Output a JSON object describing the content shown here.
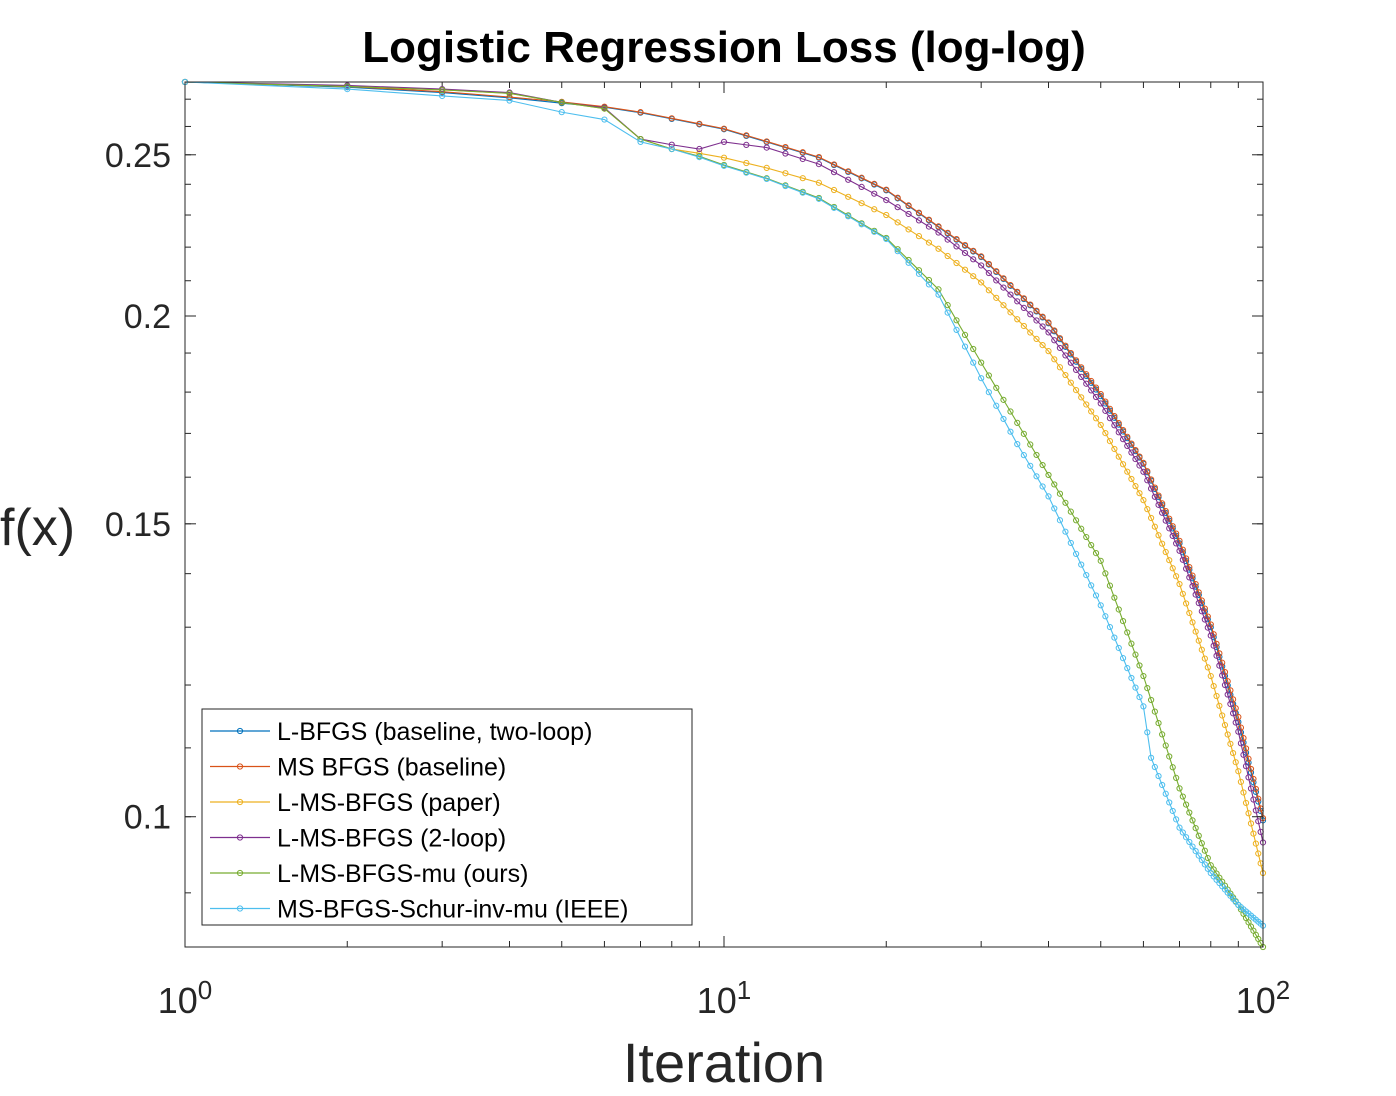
{
  "chart_data": {
    "type": "line",
    "scale": "log-log",
    "title": "Logistic Regression Loss (log-log)",
    "xlabel": "Iteration",
    "ylabel": "f(x)",
    "xlim": [
      1,
      100
    ],
    "ylim": [
      0.0835,
      0.2765
    ],
    "x_ticks": [
      {
        "value": 1,
        "base": "10",
        "exp": "0"
      },
      {
        "value": 10,
        "base": "10",
        "exp": "1"
      },
      {
        "value": 100,
        "base": "10",
        "exp": "2"
      }
    ],
    "y_ticks": [
      {
        "value": 0.1,
        "label": "0.1"
      },
      {
        "value": 0.15,
        "label": "0.15"
      },
      {
        "value": 0.2,
        "label": "0.2"
      },
      {
        "value": 0.25,
        "label": "0.25"
      }
    ],
    "legend_position": "bottom-left",
    "series": [
      {
        "name": "L-BFGS (baseline, two-loop)",
        "color": "#0072BD",
        "points": [
          [
            1,
            0.2765
          ],
          [
            2,
            0.2745
          ],
          [
            3,
            0.2725
          ],
          [
            4,
            0.2705
          ],
          [
            5,
            0.2685
          ],
          [
            6,
            0.267
          ],
          [
            7,
            0.265
          ],
          [
            10,
            0.259
          ],
          [
            15,
            0.249
          ],
          [
            20,
            0.238
          ],
          [
            30,
            0.217
          ],
          [
            40,
            0.198
          ],
          [
            50,
            0.179
          ],
          [
            60,
            0.163
          ],
          [
            70,
            0.146
          ],
          [
            80,
            0.13
          ],
          [
            90,
            0.114
          ],
          [
            100,
            0.0995
          ]
        ]
      },
      {
        "name": "MS BFGS (baseline)",
        "color": "#D95319",
        "points": [
          [
            1,
            0.2765
          ],
          [
            2,
            0.2748
          ],
          [
            3,
            0.2728
          ],
          [
            4,
            0.2708
          ],
          [
            5,
            0.269
          ],
          [
            6,
            0.2672
          ],
          [
            7,
            0.2652
          ],
          [
            10,
            0.2592
          ],
          [
            15,
            0.2492
          ],
          [
            20,
            0.2382
          ],
          [
            30,
            0.2172
          ],
          [
            40,
            0.1982
          ],
          [
            50,
            0.1795
          ],
          [
            60,
            0.1632
          ],
          [
            70,
            0.1465
          ],
          [
            80,
            0.1305
          ],
          [
            90,
            0.1148
          ],
          [
            100,
            0.0998
          ]
        ]
      },
      {
        "name": "L-MS-BFGS (paper)",
        "color": "#EDB120",
        "points": [
          [
            1,
            0.2765
          ],
          [
            2,
            0.2748
          ],
          [
            3,
            0.2735
          ],
          [
            4,
            0.2722
          ],
          [
            5,
            0.2688
          ],
          [
            6,
            0.2665
          ],
          [
            7,
            0.2555
          ],
          [
            8,
            0.252
          ],
          [
            9,
            0.2505
          ],
          [
            10,
            0.249
          ],
          [
            12,
            0.2455
          ],
          [
            15,
            0.2405
          ],
          [
            20,
            0.23
          ],
          [
            25,
            0.2195
          ],
          [
            30,
            0.2095
          ],
          [
            40,
            0.1905
          ],
          [
            50,
            0.172
          ],
          [
            60,
            0.155
          ],
          [
            70,
            0.138
          ],
          [
            80,
            0.1215
          ],
          [
            90,
            0.1065
          ],
          [
            100,
            0.0925
          ]
        ]
      },
      {
        "name": "L-MS-BFGS (2-loop)",
        "color": "#7E2F8E",
        "points": [
          [
            1,
            0.2765
          ],
          [
            2,
            0.2752
          ],
          [
            3,
            0.2738
          ],
          [
            4,
            0.2725
          ],
          [
            5,
            0.2688
          ],
          [
            6,
            0.2668
          ],
          [
            7,
            0.2555
          ],
          [
            8,
            0.2535
          ],
          [
            9,
            0.252
          ],
          [
            10,
            0.2545
          ],
          [
            12,
            0.2525
          ],
          [
            15,
            0.2468
          ],
          [
            20,
            0.2348
          ],
          [
            25,
            0.2245
          ],
          [
            30,
            0.2145
          ],
          [
            40,
            0.1955
          ],
          [
            50,
            0.1772
          ],
          [
            60,
            0.1612
          ],
          [
            70,
            0.1445
          ],
          [
            80,
            0.1285
          ],
          [
            90,
            0.1125
          ],
          [
            100,
            0.0965
          ]
        ]
      },
      {
        "name": "L-MS-BFGS-mu (ours)",
        "color": "#77AC30",
        "points": [
          [
            1,
            0.2765
          ],
          [
            2,
            0.2748
          ],
          [
            3,
            0.2735
          ],
          [
            4,
            0.2722
          ],
          [
            5,
            0.2688
          ],
          [
            6,
            0.2665
          ],
          [
            7,
            0.2555
          ],
          [
            8,
            0.252
          ],
          [
            9,
            0.2495
          ],
          [
            10,
            0.2465
          ],
          [
            12,
            0.242
          ],
          [
            15,
            0.2355
          ],
          [
            20,
            0.2228
          ],
          [
            25,
            0.2075
          ],
          [
            30,
            0.1875
          ],
          [
            35,
            0.1725
          ],
          [
            40,
            0.1605
          ],
          [
            50,
            0.1425
          ],
          [
            60,
            0.1215
          ],
          [
            70,
            0.104
          ],
          [
            80,
            0.0935
          ],
          [
            90,
            0.0885
          ],
          [
            100,
            0.0835
          ]
        ]
      },
      {
        "name": "MS-BFGS-Schur-inv-mu (IEEE)",
        "color": "#4DBEEE",
        "points": [
          [
            1,
            0.2765
          ],
          [
            2,
            0.2738
          ],
          [
            3,
            0.2712
          ],
          [
            4,
            0.2695
          ],
          [
            5,
            0.2652
          ],
          [
            6,
            0.2625
          ],
          [
            7,
            0.2545
          ],
          [
            8,
            0.252
          ],
          [
            9,
            0.2492
          ],
          [
            10,
            0.2462
          ],
          [
            12,
            0.2418
          ],
          [
            15,
            0.2352
          ],
          [
            20,
            0.2225
          ],
          [
            25,
            0.206
          ],
          [
            30,
            0.1835
          ],
          [
            35,
            0.1675
          ],
          [
            40,
            0.1558
          ],
          [
            50,
            0.134
          ],
          [
            60,
            0.1165
          ],
          [
            62,
            0.1085
          ],
          [
            70,
            0.0985
          ],
          [
            80,
            0.0925
          ],
          [
            90,
            0.0885
          ],
          [
            100,
            0.086
          ]
        ]
      }
    ]
  }
}
